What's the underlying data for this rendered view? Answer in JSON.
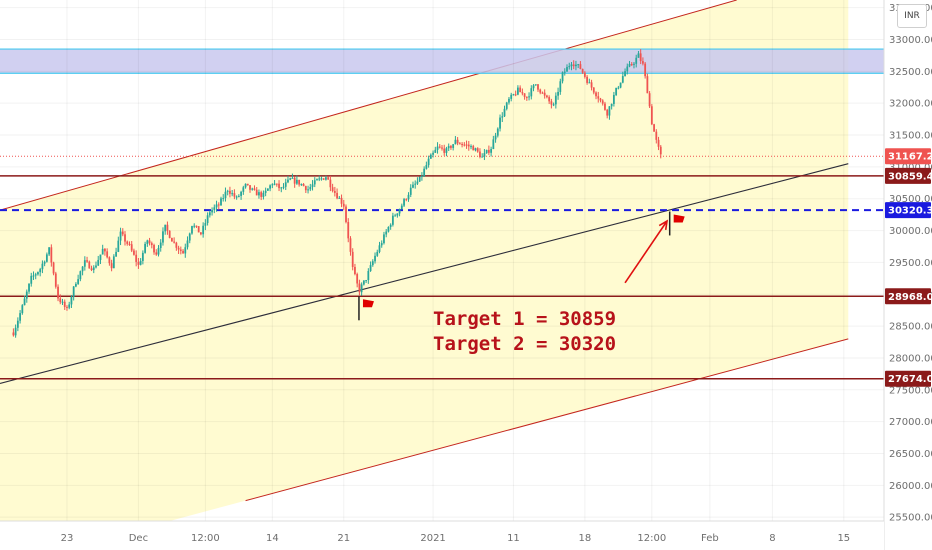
{
  "chart_data": {
    "type": "candlestick",
    "currency": "INR",
    "y_ticks": [
      33500,
      33000,
      32500,
      32000,
      31500,
      31000,
      30500,
      30000,
      29500,
      29000,
      28500,
      28000,
      27500,
      27000,
      26500,
      26000,
      25500
    ],
    "y_tick_labels": [
      "33500.00",
      "33000.00",
      "32500.00",
      "32000.00",
      "31500.00",
      "31000.00",
      "30500.00",
      "30000.00",
      "29500.00",
      "29000.00",
      "28500.00",
      "28000.00",
      "27500.00",
      "27000.00",
      "26500.00",
      "26000.00",
      "25500.00"
    ],
    "ylim": [
      25440,
      33620
    ],
    "x_ticks": [
      {
        "label": "23",
        "day": 6
      },
      {
        "label": "Dec",
        "day": 14
      },
      {
        "label": "12:00",
        "day": 21.5
      },
      {
        "label": "14",
        "day": 29
      },
      {
        "label": "21",
        "day": 37
      },
      {
        "label": "2021",
        "day": 47
      },
      {
        "label": "11",
        "day": 56
      },
      {
        "label": "18",
        "day": 64
      },
      {
        "label": "12:00",
        "day": 71.5
      },
      {
        "label": "Feb",
        "day": 78
      },
      {
        "label": "8",
        "day": 85
      },
      {
        "label": "15",
        "day": 93
      }
    ],
    "xlim": [
      -1.5,
      97.5
    ],
    "price_path": [
      [
        0,
        28400
      ],
      [
        1,
        28800
      ],
      [
        2,
        29250
      ],
      [
        3,
        29400
      ],
      [
        4,
        29700
      ],
      [
        5,
        28950
      ],
      [
        6,
        28750
      ],
      [
        7,
        29200
      ],
      [
        8,
        29500
      ],
      [
        9,
        29400
      ],
      [
        10,
        29700
      ],
      [
        11,
        29450
      ],
      [
        12,
        29950
      ],
      [
        13,
        29750
      ],
      [
        14,
        29450
      ],
      [
        15,
        29850
      ],
      [
        16,
        29650
      ],
      [
        17,
        30050
      ],
      [
        18,
        29800
      ],
      [
        19,
        29650
      ],
      [
        20,
        30100
      ],
      [
        21,
        29950
      ],
      [
        22,
        30300
      ],
      [
        23,
        30400
      ],
      [
        24,
        30650
      ],
      [
        25,
        30500
      ],
      [
        26,
        30700
      ],
      [
        27,
        30600
      ],
      [
        28,
        30550
      ],
      [
        29,
        30750
      ],
      [
        30,
        30650
      ],
      [
        31,
        30800
      ],
      [
        32,
        30750
      ],
      [
        33,
        30650
      ],
      [
        34,
        30780
      ],
      [
        35,
        30850
      ],
      [
        36,
        30600
      ],
      [
        37,
        30400
      ],
      [
        38,
        29400
      ],
      [
        38.7,
        29050
      ],
      [
        39.5,
        29250
      ],
      [
        40.5,
        29600
      ],
      [
        41.5,
        29900
      ],
      [
        42.5,
        30200
      ],
      [
        43.5,
        30400
      ],
      [
        44.5,
        30650
      ],
      [
        45.5,
        30800
      ],
      [
        46.5,
        31100
      ],
      [
        47.5,
        31300
      ],
      [
        48.5,
        31250
      ],
      [
        49.5,
        31400
      ],
      [
        50.5,
        31350
      ],
      [
        51.5,
        31300
      ],
      [
        52.5,
        31150
      ],
      [
        53.5,
        31300
      ],
      [
        54.5,
        31750
      ],
      [
        55.5,
        32050
      ],
      [
        56.5,
        32200
      ],
      [
        57.5,
        32100
      ],
      [
        58.5,
        32300
      ],
      [
        59.5,
        32100
      ],
      [
        60.5,
        31950
      ],
      [
        61.5,
        32450
      ],
      [
        62.5,
        32650
      ],
      [
        63.5,
        32550
      ],
      [
        64.5,
        32300
      ],
      [
        65.5,
        32100
      ],
      [
        66.5,
        31850
      ],
      [
        67.5,
        32200
      ],
      [
        68.5,
        32500
      ],
      [
        69.5,
        32650
      ],
      [
        70,
        32750
      ],
      [
        70.5,
        32600
      ],
      [
        71,
        32200
      ],
      [
        71.5,
        31700
      ],
      [
        72,
        31400
      ],
      [
        72.5,
        31167
      ]
    ],
    "last_price": 31167.25,
    "last_price_label": "31167.25",
    "resistance_zone": [
      32470,
      32850
    ],
    "levels": [
      {
        "value": 30859.45,
        "label": "30859.45",
        "style": "solid",
        "color": "#8b1a1a"
      },
      {
        "value": 30320.3,
        "label": "30320.30",
        "style": "dashed",
        "color": "#1a1adf"
      },
      {
        "value": 28968.0,
        "label": "28968.00",
        "style": "solid",
        "color": "#8b1a1a"
      },
      {
        "value": 27674.0,
        "label": "27674.00",
        "style": "solid",
        "color": "#8b1a1a"
      }
    ],
    "channel": {
      "upper": {
        "start": [
          -1.5,
          30320
        ],
        "end": [
          81,
          33620
        ]
      },
      "middle": {
        "start": [
          -1.5,
          27600
        ],
        "end": [
          93.5,
          31050
        ]
      },
      "lower": {
        "start": [
          26,
          25760
        ],
        "end": [
          93.5,
          28300
        ]
      }
    },
    "flags": [
      {
        "day": 38.7,
        "price": 28968
      },
      {
        "day": 73.5,
        "price": 30300
      }
    ],
    "arrow": {
      "from": [
        68.5,
        29180
      ],
      "to": [
        73.2,
        30150
      ]
    },
    "annotations": [
      "Target 1 = 30859",
      "Target 2 = 30320"
    ],
    "colors": {
      "up": "#26a69a",
      "down": "#ef5350",
      "channel_fill": "#fffbd1",
      "zone_fill": "#c9c8ee",
      "zone_border": "#46c8ef",
      "channel_line": "#c4261e",
      "middle_line": "#2d2d3a",
      "annotation": "#b7121a"
    }
  }
}
